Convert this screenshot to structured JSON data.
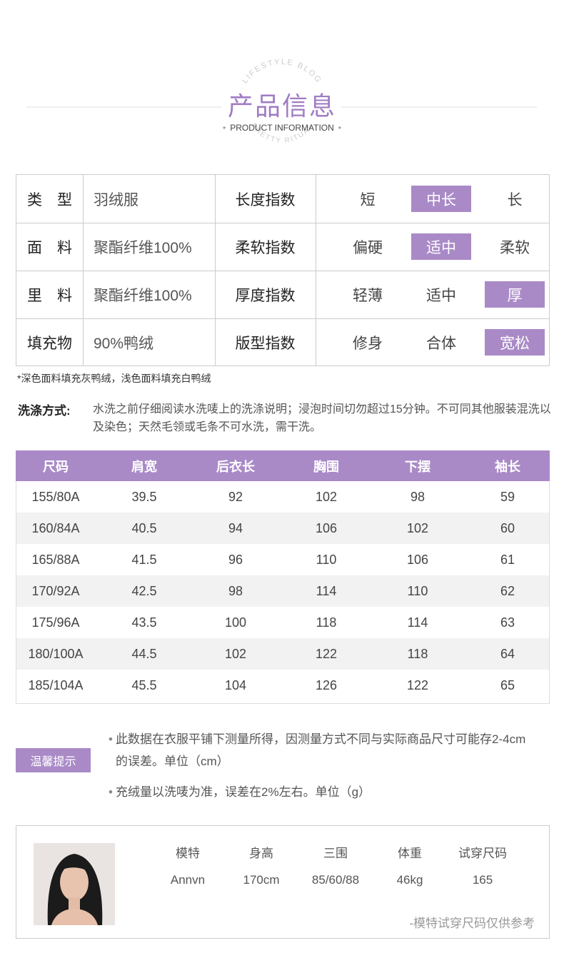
{
  "header": {
    "title": "产品信息",
    "subtitle": "PRODUCT INFORMATION",
    "ring_top": "LIFESTYLE BLOG",
    "ring_bottom": "PRETTY RITUAL"
  },
  "info_table": {
    "rows": [
      {
        "label": "类　型",
        "value": "羽绒服",
        "index": "长度指数",
        "options": [
          "短",
          "中长",
          "长"
        ],
        "selected": 1
      },
      {
        "label": "面　料",
        "value": "聚酯纤维100%",
        "index": "柔软指数",
        "options": [
          "偏硬",
          "适中",
          "柔软"
        ],
        "selected": 1
      },
      {
        "label": "里　料",
        "value": "聚酯纤维100%",
        "index": "厚度指数",
        "options": [
          "轻薄",
          "适中",
          "厚"
        ],
        "selected": 2
      },
      {
        "label": "填充物",
        "value": "90%鸭绒",
        "index": "版型指数",
        "options": [
          "修身",
          "合体",
          "宽松"
        ],
        "selected": 2
      }
    ]
  },
  "fill_note": "*深色面料填充灰鸭绒，浅色面料填充白鸭绒",
  "wash": {
    "label": "洗涤方式:",
    "text": "水洗之前仔细阅读水洗唛上的洗涤说明；浸泡时间切勿超过15分钟。不可同其他服装混洗以及染色；天然毛领或毛条不可水洗，需干洗。"
  },
  "size_table": {
    "headers": [
      "尺码",
      "肩宽",
      "后衣长",
      "胸围",
      "下摆",
      "袖长"
    ],
    "rows": [
      [
        "155/80A",
        39.5,
        92,
        102,
        98,
        59
      ],
      [
        "160/84A",
        40.5,
        94,
        106,
        102,
        60
      ],
      [
        "165/88A",
        41.5,
        96,
        110,
        106,
        61
      ],
      [
        "170/92A",
        42.5,
        98,
        114,
        110,
        62
      ],
      [
        "175/96A",
        43.5,
        100,
        118,
        114,
        63
      ],
      [
        "180/100A",
        44.5,
        102,
        122,
        118,
        64
      ],
      [
        "185/104A",
        45.5,
        104,
        126,
        122,
        65
      ]
    ]
  },
  "tips": {
    "label": "温馨提示",
    "items": [
      "此数据在衣服平铺下测量所得，因测量方式不同与实际商品尺寸可能存2-4cm的误差。单位（cm）",
      "充绒量以洗唛为准，误差在2%左右。单位（g）"
    ]
  },
  "model": {
    "headers": [
      "模特",
      "身高",
      "三围",
      "体重",
      "试穿尺码"
    ],
    "values": [
      "Annvn",
      "170cm",
      "85/60/88",
      "46kg",
      "165"
    ],
    "note": "-模特试穿尺码仅供参考"
  }
}
